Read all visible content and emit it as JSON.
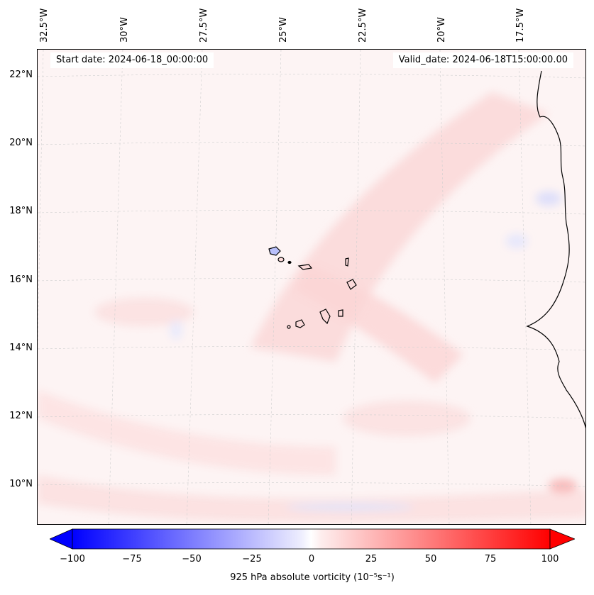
{
  "map": {
    "start_date": "Start date: 2024-06-18_00:00:00",
    "valid_date": "Valid_date: 2024-06-18T15:00:00.00",
    "lon_labels": [
      "32.5°W",
      "30°W",
      "27.5°W",
      "25°W",
      "22.5°W",
      "20°W",
      "17.5°W"
    ],
    "lat_labels": [
      "22°N",
      "20°N",
      "18°N",
      "16°N",
      "14°N",
      "12°N",
      "10°N"
    ],
    "colors": {
      "background": "#fdf4f4",
      "coast": "#000000",
      "neg_max": "#0000ff",
      "pos_max": "#ff0000"
    }
  },
  "colorbar": {
    "ticks": [
      "−100",
      "−75",
      "−50",
      "−25",
      "0",
      "25",
      "50",
      "75",
      "100"
    ],
    "min": -100,
    "max": 100,
    "label": "925 hPa absolute vorticity (10⁻⁵s⁻¹)"
  }
}
